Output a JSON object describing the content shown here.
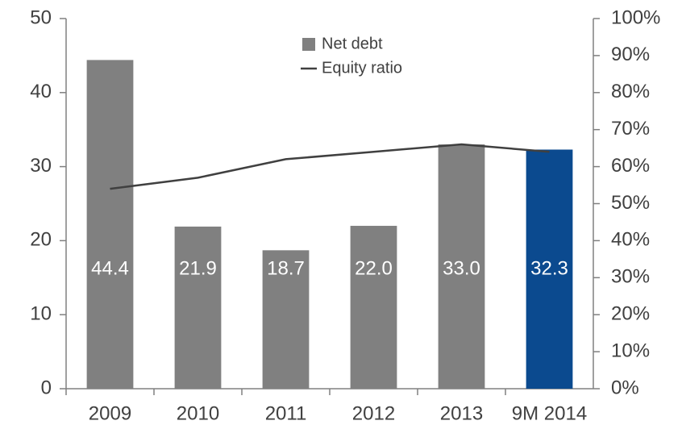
{
  "chart_data": {
    "type": "bar",
    "categories": [
      "2009",
      "2010",
      "2011",
      "2012",
      "2013",
      "9M 2014"
    ],
    "series": [
      {
        "name": "Net debt",
        "type": "bar",
        "color": "#808080",
        "colors": [
          "#808080",
          "#808080",
          "#808080",
          "#808080",
          "#808080",
          "#0b4a8f"
        ],
        "values": [
          44.4,
          21.9,
          18.7,
          22.0,
          33.0,
          32.3
        ],
        "value_labels": [
          "44.4",
          "21.9",
          "18.7",
          "22.0",
          "33.0",
          "32.3"
        ]
      },
      {
        "name": "Equity ratio",
        "type": "line",
        "color": "#404040",
        "axis": "y2",
        "values": [
          54,
          57,
          62,
          64,
          66,
          64
        ]
      }
    ],
    "ylim": [
      0,
      50
    ],
    "yticks": [
      0,
      10,
      20,
      30,
      40,
      50
    ],
    "y2lim": [
      0,
      100
    ],
    "y2ticks": [
      {
        "value": 0,
        "label": "0%"
      },
      {
        "value": 10,
        "label": "10%"
      },
      {
        "value": 20,
        "label": "20%"
      },
      {
        "value": 30,
        "label": "30%"
      },
      {
        "value": 40,
        "label": "40%"
      },
      {
        "value": 50,
        "label": "50%"
      },
      {
        "value": 60,
        "label": "60%"
      },
      {
        "value": 70,
        "label": "70%"
      },
      {
        "value": 80,
        "label": "80%"
      },
      {
        "value": 90,
        "label": "90%"
      },
      {
        "value": 100,
        "label": "100%"
      }
    ],
    "grid": false,
    "legend": "top"
  }
}
